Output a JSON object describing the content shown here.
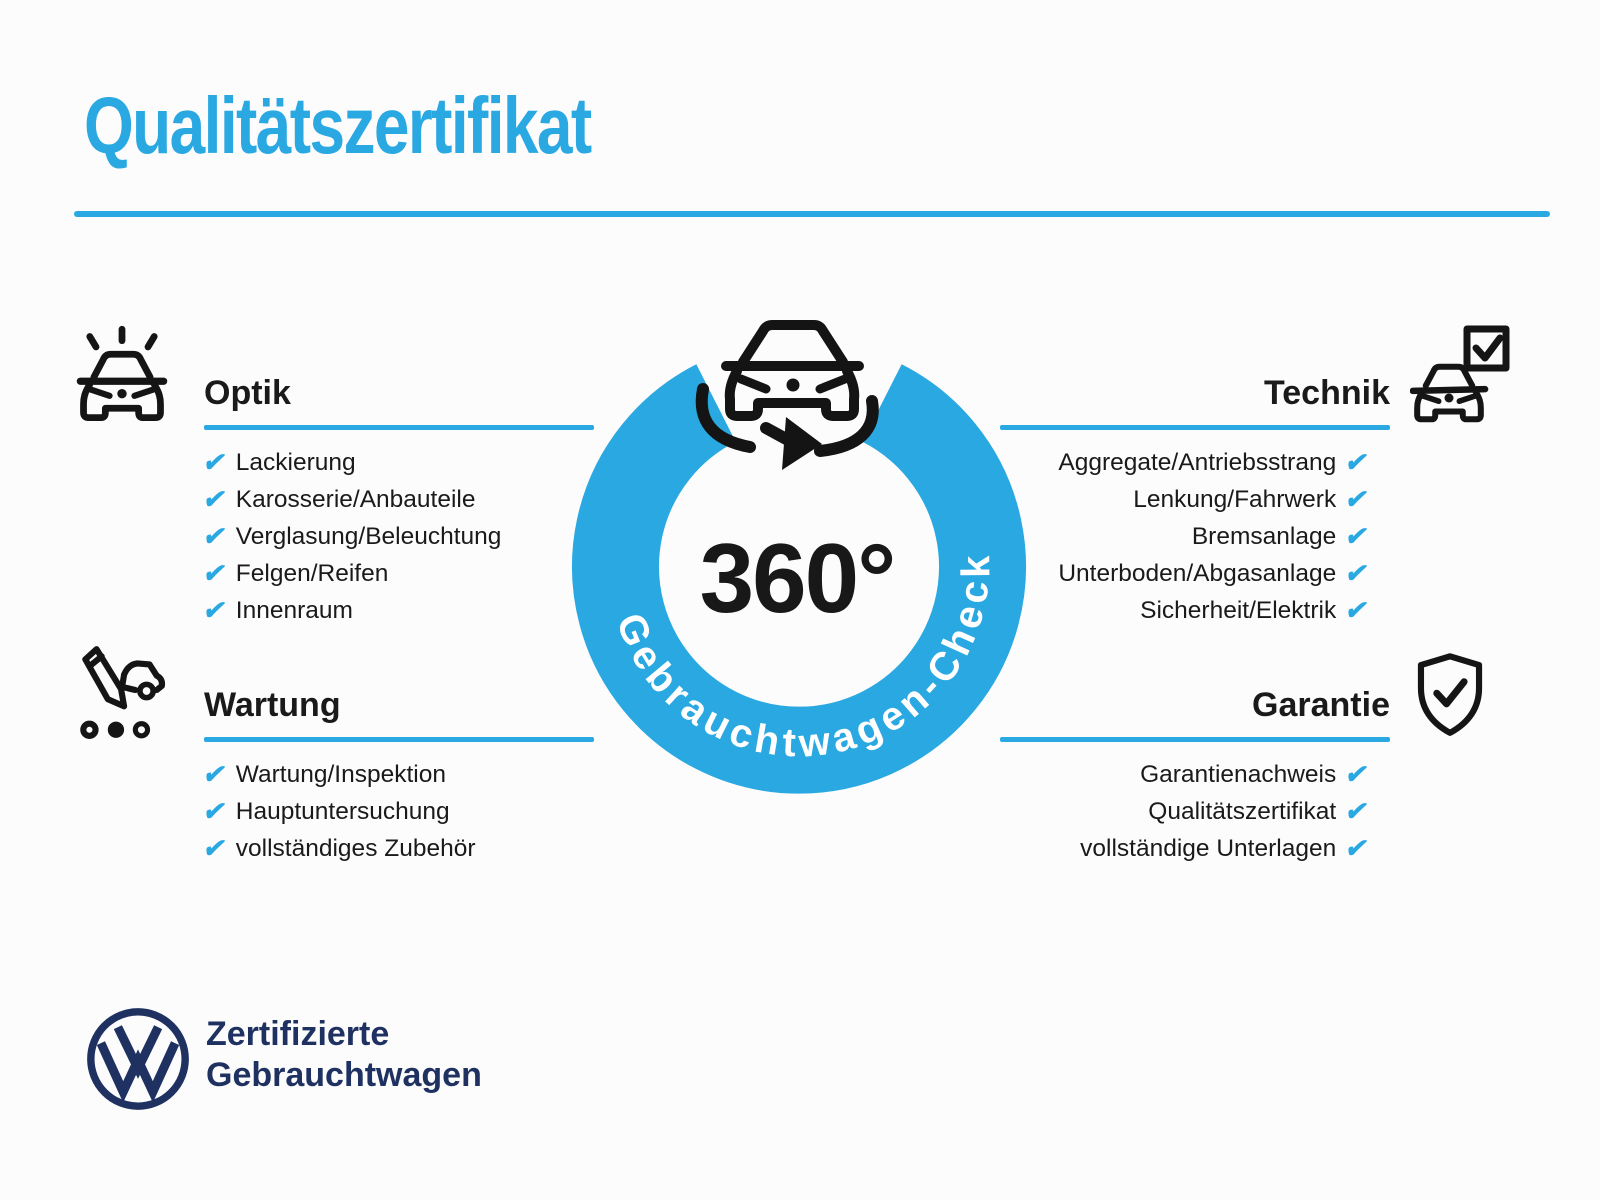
{
  "title": "Qualitätszertifikat",
  "checkmark_glyph": "✔",
  "colors": {
    "accent_blue": "#29A8E1",
    "vw_navy": "#1E3160",
    "text_ink": "#1A1A1A"
  },
  "sections": {
    "optik": {
      "heading": "Optik",
      "icon": "car-shine-icon",
      "items": [
        "Lackierung",
        "Karosserie/Anbauteile",
        "Verglasung/Beleuchtung",
        "Felgen/Reifen",
        "Innenraum"
      ]
    },
    "technik": {
      "heading": "Technik",
      "icon": "car-checkbox-icon",
      "items": [
        "Aggregate/Antriebsstrang",
        "Lenkung/Fahrwerk",
        "Bremsanlage",
        "Unterboden/Abgasanlage",
        "Sicherheit/Elektrik"
      ]
    },
    "wartung": {
      "heading": "Wartung",
      "icon": "pencil-car-icon",
      "items": [
        "Wartung/Inspektion",
        "Hauptuntersuchung",
        "vollständiges Zubehör"
      ]
    },
    "garantie": {
      "heading": "Garantie",
      "icon": "shield-check-icon",
      "items": [
        "Garantienachweis",
        "Qualitätszertifikat",
        "vollständige Unterlagen"
      ]
    }
  },
  "center": {
    "degrees": "360°",
    "ring_label": "Gebrauchtwagen-Check",
    "icon": "rotating-car-icon"
  },
  "footer": {
    "brand_line1": "Zertifizierte",
    "brand_line2": "Gebrauchtwagen",
    "logo": "vw-logo"
  }
}
